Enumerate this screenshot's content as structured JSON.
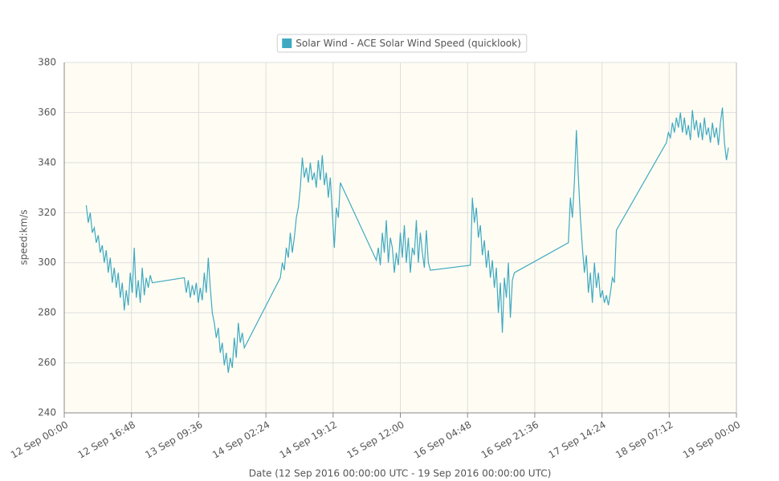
{
  "chart_data": {
    "type": "line",
    "xlabel": "Date (12 Sep 2016 00:00:00 UTC - 19 Sep 2016 00:00:00 UTC)",
    "ylabel": "speed:km/s",
    "legend": "top",
    "grid": true,
    "xlim": [
      "2016-09-12T00:00",
      "2016-09-19T00:00"
    ],
    "xticks": [
      {
        "value": "2016-09-12T00:00",
        "label": "12 Sep 00:00"
      },
      {
        "value": "2016-09-12T16:48",
        "label": "12 Sep 16:48"
      },
      {
        "value": "2016-09-13T09:36",
        "label": "13 Sep 09:36"
      },
      {
        "value": "2016-09-14T02:24",
        "label": "14 Sep 02:24"
      },
      {
        "value": "2016-09-14T19:12",
        "label": "14 Sep 19:12"
      },
      {
        "value": "2016-09-15T12:00",
        "label": "15 Sep 12:00"
      },
      {
        "value": "2016-09-16T04:48",
        "label": "16 Sep 04:48"
      },
      {
        "value": "2016-09-16T21:36",
        "label": "16 Sep 21:36"
      },
      {
        "value": "2016-09-17T14:24",
        "label": "17 Sep 14:24"
      },
      {
        "value": "2016-09-18T07:12",
        "label": "18 Sep 07:12"
      },
      {
        "value": "2016-09-19T00:00",
        "label": "19 Sep 00:00"
      }
    ],
    "ylim": [
      240,
      380
    ],
    "yticks": [
      240,
      260,
      280,
      300,
      320,
      340,
      360,
      380
    ],
    "x": [
      "2016-09-12T05:30",
      "2016-09-12T06:00",
      "2016-09-12T06:30",
      "2016-09-12T07:00",
      "2016-09-12T07:30",
      "2016-09-12T08:00",
      "2016-09-12T08:30",
      "2016-09-12T09:00",
      "2016-09-12T09:30",
      "2016-09-12T10:00",
      "2016-09-12T10:30",
      "2016-09-12T11:00",
      "2016-09-12T11:30",
      "2016-09-12T12:00",
      "2016-09-12T12:30",
      "2016-09-12T13:00",
      "2016-09-12T13:30",
      "2016-09-12T14:00",
      "2016-09-12T14:30",
      "2016-09-12T15:00",
      "2016-09-12T15:30",
      "2016-09-12T16:00",
      "2016-09-12T16:30",
      "2016-09-12T17:00",
      "2016-09-12T17:30",
      "2016-09-12T18:00",
      "2016-09-12T18:30",
      "2016-09-12T19:00",
      "2016-09-12T19:30",
      "2016-09-12T20:00",
      "2016-09-12T20:30",
      "2016-09-12T21:00",
      "2016-09-12T21:30",
      "2016-09-12T22:00",
      "2016-09-13T06:00",
      "2016-09-13T06:30",
      "2016-09-13T07:00",
      "2016-09-13T07:30",
      "2016-09-13T08:00",
      "2016-09-13T08:30",
      "2016-09-13T09:00",
      "2016-09-13T09:30",
      "2016-09-13T10:00",
      "2016-09-13T10:30",
      "2016-09-13T11:00",
      "2016-09-13T11:30",
      "2016-09-13T12:00",
      "2016-09-13T12:30",
      "2016-09-13T13:00",
      "2016-09-13T13:30",
      "2016-09-13T14:00",
      "2016-09-13T14:30",
      "2016-09-13T15:00",
      "2016-09-13T15:30",
      "2016-09-13T16:00",
      "2016-09-13T16:30",
      "2016-09-13T17:00",
      "2016-09-13T17:30",
      "2016-09-13T18:00",
      "2016-09-13T18:30",
      "2016-09-13T19:00",
      "2016-09-13T19:30",
      "2016-09-13T20:00",
      "2016-09-13T20:30",
      "2016-09-13T21:00",
      "2016-09-14T06:00",
      "2016-09-14T06:30",
      "2016-09-14T07:00",
      "2016-09-14T07:30",
      "2016-09-14T08:00",
      "2016-09-14T08:30",
      "2016-09-14T09:00",
      "2016-09-14T09:30",
      "2016-09-14T10:00",
      "2016-09-14T10:30",
      "2016-09-14T11:00",
      "2016-09-14T11:30",
      "2016-09-14T12:00",
      "2016-09-14T12:30",
      "2016-09-14T13:00",
      "2016-09-14T13:30",
      "2016-09-14T14:00",
      "2016-09-14T14:30",
      "2016-09-14T15:00",
      "2016-09-14T15:30",
      "2016-09-14T16:00",
      "2016-09-14T16:30",
      "2016-09-14T17:00",
      "2016-09-14T17:30",
      "2016-09-14T18:00",
      "2016-09-14T18:30",
      "2016-09-14T19:00",
      "2016-09-14T19:30",
      "2016-09-14T20:00",
      "2016-09-14T20:30",
      "2016-09-14T21:00",
      "2016-09-15T06:00",
      "2016-09-15T06:30",
      "2016-09-15T07:00",
      "2016-09-15T07:30",
      "2016-09-15T08:00",
      "2016-09-15T08:30",
      "2016-09-15T09:00",
      "2016-09-15T09:30",
      "2016-09-15T10:00",
      "2016-09-15T10:30",
      "2016-09-15T11:00",
      "2016-09-15T11:30",
      "2016-09-15T12:00",
      "2016-09-15T12:30",
      "2016-09-15T13:00",
      "2016-09-15T13:30",
      "2016-09-15T14:00",
      "2016-09-15T14:30",
      "2016-09-15T15:00",
      "2016-09-15T15:30",
      "2016-09-15T16:00",
      "2016-09-15T16:30",
      "2016-09-15T17:00",
      "2016-09-15T17:30",
      "2016-09-15T18:00",
      "2016-09-15T18:30",
      "2016-09-15T19:00",
      "2016-09-15T19:30",
      "2016-09-16T05:30",
      "2016-09-16T06:00",
      "2016-09-16T06:30",
      "2016-09-16T07:00",
      "2016-09-16T07:30",
      "2016-09-16T08:00",
      "2016-09-16T08:30",
      "2016-09-16T09:00",
      "2016-09-16T09:30",
      "2016-09-16T10:00",
      "2016-09-16T10:30",
      "2016-09-16T11:00",
      "2016-09-16T11:30",
      "2016-09-16T12:00",
      "2016-09-16T12:30",
      "2016-09-16T13:00",
      "2016-09-16T13:30",
      "2016-09-16T14:00",
      "2016-09-16T14:30",
      "2016-09-16T15:00",
      "2016-09-16T15:30",
      "2016-09-16T16:00",
      "2016-09-16T16:30",
      "2016-09-17T06:00",
      "2016-09-17T06:30",
      "2016-09-17T07:00",
      "2016-09-17T07:30",
      "2016-09-17T08:00",
      "2016-09-17T08:30",
      "2016-09-17T09:00",
      "2016-09-17T09:30",
      "2016-09-17T10:00",
      "2016-09-17T10:30",
      "2016-09-17T11:00",
      "2016-09-17T11:30",
      "2016-09-17T12:00",
      "2016-09-17T12:30",
      "2016-09-17T13:00",
      "2016-09-17T13:30",
      "2016-09-17T14:00",
      "2016-09-17T14:30",
      "2016-09-17T15:00",
      "2016-09-17T15:30",
      "2016-09-17T16:00",
      "2016-09-17T16:30",
      "2016-09-17T17:00",
      "2016-09-17T17:30",
      "2016-09-17T18:00",
      "2016-09-18T06:30",
      "2016-09-18T07:00",
      "2016-09-18T07:30",
      "2016-09-18T08:00",
      "2016-09-18T08:30",
      "2016-09-18T09:00",
      "2016-09-18T09:30",
      "2016-09-18T10:00",
      "2016-09-18T10:30",
      "2016-09-18T11:00",
      "2016-09-18T11:30",
      "2016-09-18T12:00",
      "2016-09-18T12:30",
      "2016-09-18T13:00",
      "2016-09-18T13:30",
      "2016-09-18T14:00",
      "2016-09-18T14:30",
      "2016-09-18T15:00",
      "2016-09-18T15:30",
      "2016-09-18T16:00",
      "2016-09-18T16:30",
      "2016-09-18T17:00",
      "2016-09-18T17:30",
      "2016-09-18T18:00",
      "2016-09-18T18:30",
      "2016-09-18T19:00",
      "2016-09-18T19:30",
      "2016-09-18T20:00",
      "2016-09-18T20:30",
      "2016-09-18T21:00",
      "2016-09-18T21:30",
      "2016-09-18T22:00"
    ],
    "series": [
      {
        "name": "Solar Wind - ACE Solar Wind Speed (quicklook)",
        "color": "#3fa9c2",
        "values": [
          323,
          316,
          320,
          312,
          314,
          308,
          311,
          304,
          307,
          300,
          305,
          296,
          302,
          292,
          298,
          290,
          296,
          286,
          292,
          281,
          289,
          283,
          296,
          288,
          306,
          286,
          293,
          284,
          298,
          287,
          294,
          290,
          295,
          292,
          294,
          288,
          293,
          286,
          291,
          287,
          292,
          284,
          290,
          285,
          296,
          288,
          302,
          290,
          280,
          276,
          270,
          274,
          264,
          268,
          259,
          264,
          256,
          262,
          258,
          270,
          262,
          276,
          268,
          272,
          266,
          294,
          300,
          297,
          306,
          302,
          312,
          304,
          310,
          318,
          322,
          330,
          342,
          334,
          338,
          332,
          340,
          333,
          336,
          330,
          341,
          333,
          343,
          331,
          336,
          326,
          334,
          320,
          306,
          322,
          318,
          332,
          301,
          306,
          299,
          312,
          304,
          317,
          300,
          310,
          306,
          296,
          304,
          299,
          312,
          302,
          315,
          300,
          310,
          296,
          306,
          303,
          317,
          300,
          312,
          304,
          298,
          313,
          300,
          297,
          299,
          326,
          316,
          322,
          310,
          315,
          303,
          309,
          298,
          305,
          294,
          301,
          290,
          298,
          280,
          292,
          272,
          294,
          286,
          300,
          278,
          293,
          296,
          308,
          326,
          318,
          332,
          353,
          334,
          318,
          306,
          296,
          303,
          288,
          296,
          284,
          300,
          290,
          296,
          286,
          289,
          284,
          287,
          283,
          288,
          294,
          292,
          313,
          348,
          352,
          350,
          356,
          352,
          358,
          354,
          360,
          352,
          358,
          351,
          355,
          349,
          361,
          353,
          357,
          350,
          356,
          349,
          358,
          351,
          354,
          348,
          356,
          350,
          354,
          347,
          356,
          362,
          348,
          341,
          346
        ]
      }
    ]
  }
}
